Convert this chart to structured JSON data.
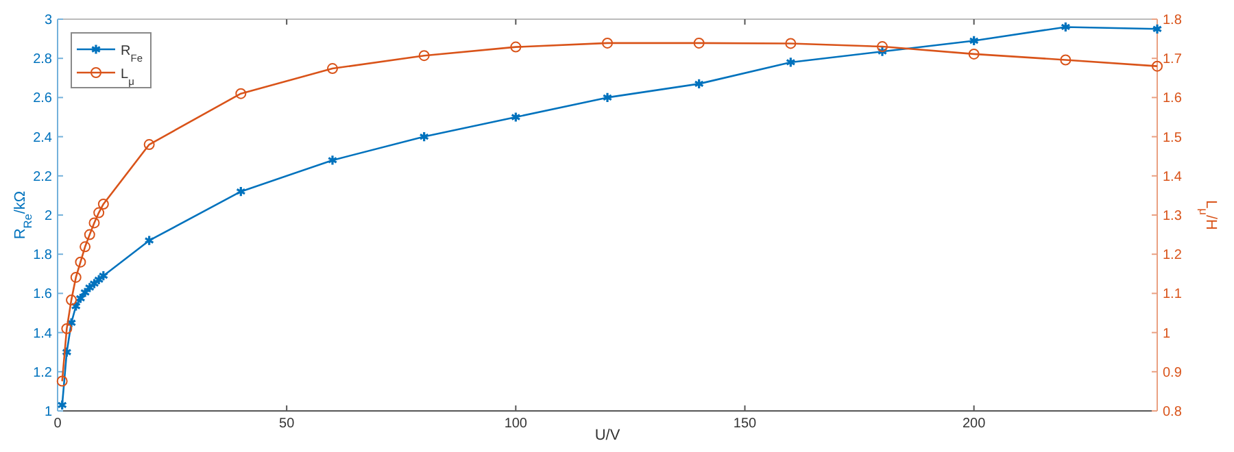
{
  "chart_data": {
    "type": "line",
    "xlabel": "U/V",
    "ylabel": "R$_{Re}$/kΩ",
    "y2label": "L$_{μ}$/H",
    "xlim": [
      0,
      240
    ],
    "xticks": [
      0,
      50,
      100,
      150,
      200
    ],
    "ylim": [
      1,
      3
    ],
    "yticks": [
      1,
      1.2,
      1.4,
      1.6,
      1.8,
      2,
      2.2,
      2.4,
      2.6,
      2.8,
      3
    ],
    "y2lim": [
      0.8,
      1.8
    ],
    "y2ticks": [
      0.8,
      0.9,
      1,
      1.1,
      1.2,
      1.3,
      1.4,
      1.5,
      1.6,
      1.7,
      1.8
    ],
    "x": [
      1,
      2,
      3,
      4,
      5,
      6,
      7,
      8,
      9,
      10,
      20,
      40,
      60,
      80,
      100,
      120,
      140,
      160,
      180,
      200,
      220,
      240
    ],
    "grid": false,
    "legend": "top left",
    "line_style": "solid",
    "series": [
      {
        "name": "R$_{Fe}$",
        "color": "#0072bd",
        "marker": "cross",
        "values": [
          1.03,
          1.3,
          1.45,
          1.535,
          1.575,
          1.605,
          1.63,
          1.65,
          1.67,
          1.69,
          1.87,
          2.12,
          2.28,
          2.4,
          2.5,
          2.6,
          2.67,
          2.78,
          2.835,
          2.89,
          2.96,
          2.95
        ]
      },
      {
        "name": "L$_{μ}$",
        "color": "#d95319",
        "marker": "circle",
        "axis": "y2",
        "values": [
          0.876,
          1.01,
          1.083,
          1.141,
          1.18,
          1.219,
          1.25,
          1.28,
          1.306,
          1.328,
          1.48,
          1.61,
          1.674,
          1.707,
          1.729,
          1.739,
          1.739,
          1.738,
          1.73,
          1.711,
          1.696,
          1.68
        ]
      }
    ]
  }
}
